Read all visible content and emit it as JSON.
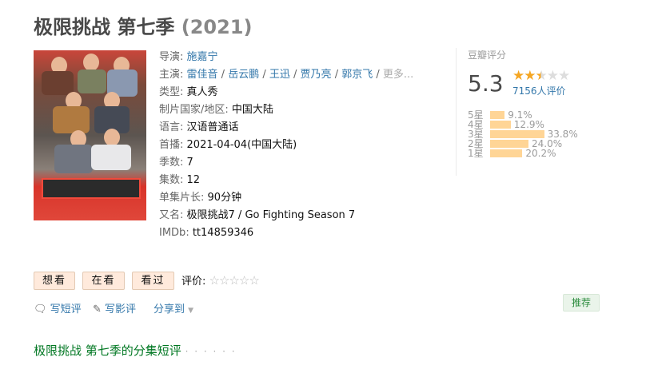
{
  "title": {
    "name": "极限挑战 第七季",
    "year": "(2021)"
  },
  "info": [
    {
      "label": "导演",
      "value": "施嘉宁",
      "links": true
    },
    {
      "label": "主演",
      "actors": [
        "雷佳音",
        "岳云鹏",
        "王迅",
        "贾乃亮",
        "郭京飞"
      ],
      "more": "更多..."
    },
    {
      "label": "类型",
      "value": "真人秀"
    },
    {
      "label": "制片国家/地区",
      "value": "中国大陆"
    },
    {
      "label": "语言",
      "value": "汉语普通话"
    },
    {
      "label": "首播",
      "value": "2021-04-04(中国大陆)"
    },
    {
      "label": "季数",
      "value": "7"
    },
    {
      "label": "集数",
      "value": "12"
    },
    {
      "label": "单集片长",
      "value": "90分钟"
    },
    {
      "label": "又名",
      "value": "极限挑战7 / Go Fighting Season 7"
    },
    {
      "label": "IMDb",
      "value": "tt14859346"
    }
  ],
  "rating": {
    "title": "豆瓣评分",
    "score": "5.3",
    "stars": 2.5,
    "votes": "7156人评价",
    "distribution": [
      {
        "label": "5星",
        "pct": "9.1%",
        "value": 9.1
      },
      {
        "label": "4星",
        "pct": "12.9%",
        "value": 12.9
      },
      {
        "label": "3星",
        "pct": "33.8%",
        "value": 33.8
      },
      {
        "label": "2星",
        "pct": "24.0%",
        "value": 24.0
      },
      {
        "label": "1星",
        "pct": "20.2%",
        "value": 20.2
      }
    ],
    "bar_color": "#ffd596",
    "star_color": "#f5a623"
  },
  "actions": {
    "want": "想看",
    "watching": "在看",
    "watched": "看过",
    "rate_label": "评价:",
    "short_review": "写短评",
    "review": "写影评",
    "share": "分享到",
    "recommend": "推荐"
  },
  "episode_heading": "极限挑战 第七季的分集短评",
  "episode_dots": "· · · · · ·"
}
